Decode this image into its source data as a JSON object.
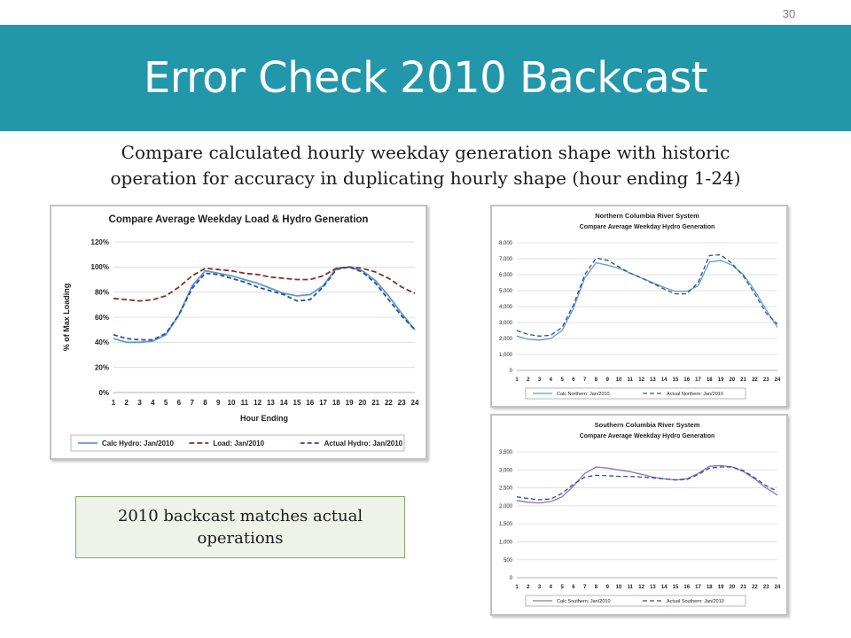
{
  "slide": {
    "number": "30",
    "title": "Error Check 2010 Backcast",
    "subtitle_lines": [
      "Compare calculated hourly weekday generation shape with historic",
      "operation for accuracy in duplicating hourly shape (hour ending 1-24)"
    ],
    "callout_lines": [
      "2010 backcast matches actual",
      "operations"
    ],
    "colors": {
      "title_band": "#2397aa",
      "callout_bg": "#eef3ea",
      "callout_border": "#7fa85f"
    }
  },
  "chart_data": [
    {
      "type": "line",
      "title": "Compare Average Weekday Load & Hydro Generation",
      "subtitle": "",
      "xlabel": "Hour Ending",
      "ylabel": "% of Max Loading",
      "ylim": [
        0,
        120
      ],
      "yticks": [
        "0%",
        "20%",
        "40%",
        "60%",
        "80%",
        "100%",
        "120%"
      ],
      "ytick_values": [
        0,
        20,
        40,
        60,
        80,
        100,
        120
      ],
      "grid": true,
      "legend_position": "bottom",
      "x": [
        1,
        2,
        3,
        4,
        5,
        6,
        7,
        8,
        9,
        10,
        11,
        12,
        13,
        14,
        15,
        16,
        17,
        18,
        19,
        20,
        21,
        22,
        23,
        24
      ],
      "series": [
        {
          "name": "Calc Hydro: Jan/2010",
          "color": "#5b9bd5",
          "dash": "solid",
          "values": [
            43,
            40,
            40,
            41,
            46,
            62,
            85,
            97,
            95,
            93,
            90,
            87,
            83,
            79,
            77,
            78,
            85,
            99,
            100,
            97,
            89,
            77,
            63,
            50
          ]
        },
        {
          "name": "Load: Jan/2010",
          "color": "#8b2e22",
          "dash": "longdash",
          "values": [
            75,
            74,
            73,
            74,
            77,
            84,
            93,
            99,
            98,
            97,
            95,
            94,
            92,
            91,
            90,
            90,
            93,
            99,
            100,
            99,
            96,
            91,
            84,
            79
          ]
        },
        {
          "name": "Actual Hydro: Jan/2010",
          "color": "#2f4f8f",
          "dash": "dash",
          "values": [
            46,
            43,
            42,
            42,
            47,
            62,
            83,
            95,
            94,
            91,
            88,
            84,
            81,
            78,
            73,
            74,
            84,
            98,
            100,
            96,
            87,
            74,
            61,
            50
          ]
        }
      ]
    },
    {
      "type": "line",
      "title": "Northern Columbia River System",
      "subtitle": "Compare Average Weekday Hydro Generation",
      "xlabel": "",
      "ylabel": "",
      "ylim": [
        0,
        8000
      ],
      "yticks": [
        "0",
        "1,000",
        "2,000",
        "3,000",
        "4,000",
        "5,000",
        "6,000",
        "7,000",
        "8,000"
      ],
      "ytick_values": [
        0,
        1000,
        2000,
        3000,
        4000,
        5000,
        6000,
        7000,
        8000
      ],
      "grid": true,
      "legend_position": "bottom",
      "x": [
        1,
        2,
        3,
        4,
        5,
        6,
        7,
        8,
        9,
        10,
        11,
        12,
        13,
        14,
        15,
        16,
        17,
        18,
        19,
        20,
        21,
        22,
        23,
        24
      ],
      "series": [
        {
          "name": "Calc Northern: Jan/2010",
          "color": "#5b9bd5",
          "dash": "solid",
          "values": [
            2150,
            1950,
            1900,
            2000,
            2500,
            3900,
            5800,
            6750,
            6600,
            6400,
            6100,
            5800,
            5500,
            5200,
            4950,
            4950,
            5300,
            6800,
            6900,
            6600,
            6000,
            5000,
            3800,
            2700
          ]
        },
        {
          "name": "Actual Northern: Jan/2010",
          "color": "#2f4f8f",
          "dash": "dash",
          "values": [
            2500,
            2250,
            2150,
            2200,
            2700,
            4100,
            6000,
            7050,
            6900,
            6500,
            6100,
            5800,
            5450,
            5100,
            4800,
            4800,
            5500,
            7200,
            7250,
            6700,
            5900,
            4800,
            3600,
            2900
          ]
        }
      ]
    },
    {
      "type": "line",
      "title": "Southern Columbia River System",
      "subtitle": "Compare Average Weekday Hydro Generation",
      "xlabel": "",
      "ylabel": "",
      "ylim": [
        0,
        3500
      ],
      "yticks": [
        "0",
        "500",
        "1,000",
        "1,500",
        "2,000",
        "2,500",
        "3,000",
        "3,500"
      ],
      "ytick_values": [
        0,
        500,
        1000,
        1500,
        2000,
        2500,
        3000,
        3500
      ],
      "grid": true,
      "legend_position": "bottom",
      "x": [
        1,
        2,
        3,
        4,
        5,
        6,
        7,
        8,
        9,
        10,
        11,
        12,
        13,
        14,
        15,
        16,
        17,
        18,
        19,
        20,
        21,
        22,
        23,
        24
      ],
      "series": [
        {
          "name": "Calc Southern: Jan/2010",
          "color": "#8e6fc1",
          "dash": "solid",
          "values": [
            2150,
            2100,
            2080,
            2120,
            2250,
            2550,
            2900,
            3080,
            3050,
            3000,
            2950,
            2880,
            2800,
            2750,
            2720,
            2750,
            2900,
            3100,
            3120,
            3080,
            2950,
            2750,
            2500,
            2300
          ]
        },
        {
          "name": "Actual Southern: Jan/2010",
          "color": "#2f4f8f",
          "dash": "dash",
          "values": [
            2250,
            2200,
            2170,
            2190,
            2350,
            2600,
            2800,
            2850,
            2840,
            2820,
            2820,
            2800,
            2780,
            2750,
            2720,
            2730,
            2870,
            3050,
            3080,
            3080,
            2980,
            2780,
            2560,
            2400
          ]
        }
      ]
    }
  ]
}
